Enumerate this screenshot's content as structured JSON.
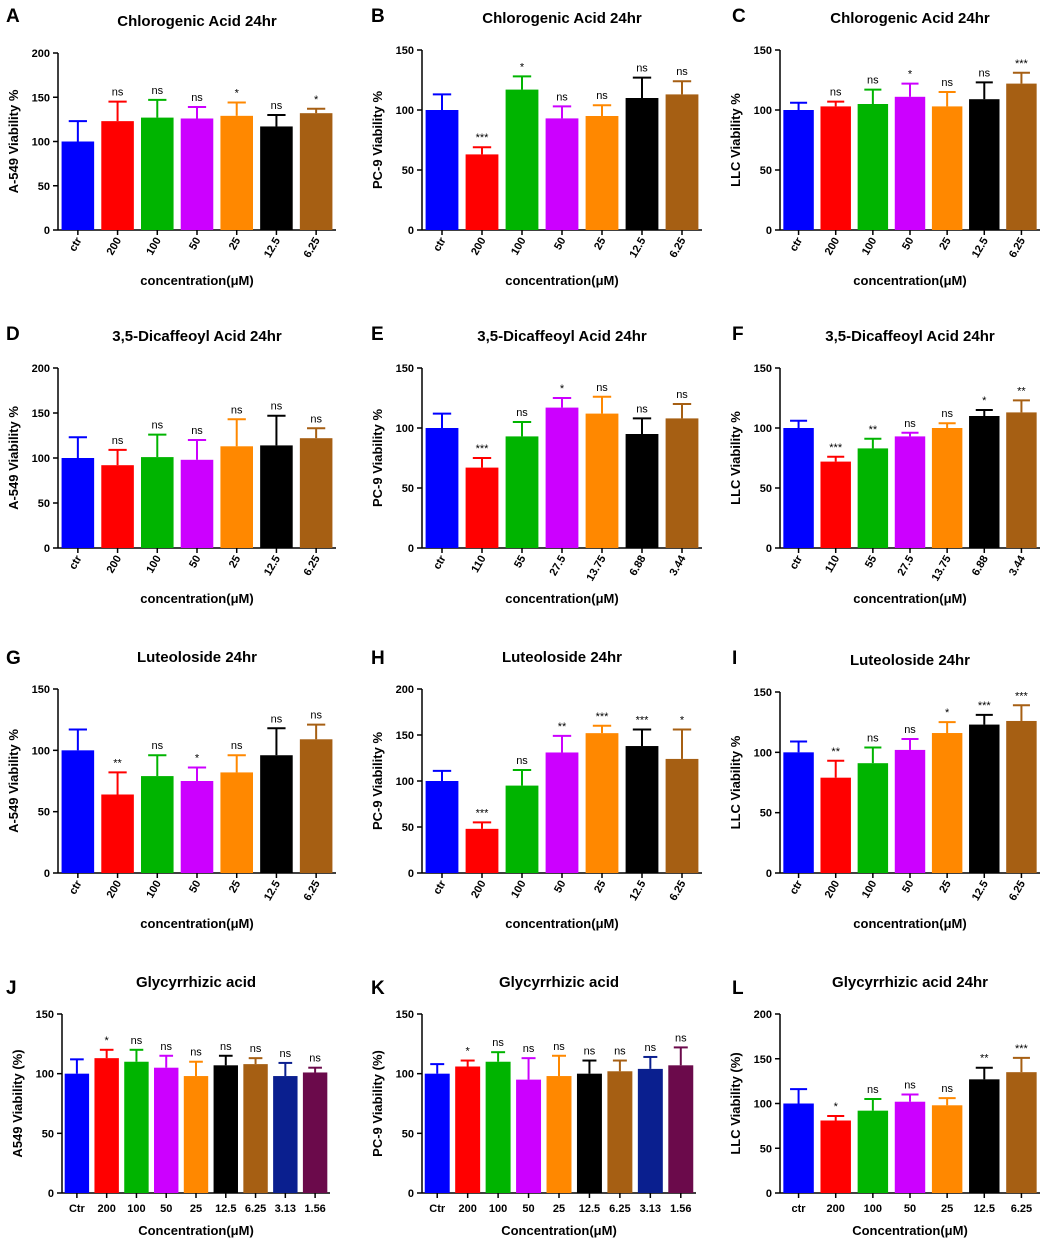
{
  "colors": {
    "blue": "#0000ff",
    "red": "#ff0000",
    "green": "#00b400",
    "purple": "#cc00ff",
    "orange": "#ff8800",
    "black": "#000000",
    "brown": "#a65f13",
    "navy": "#0a1f8f",
    "maroon": "#6b0a4b"
  },
  "chart_data": [
    {
      "panel": "A",
      "type": "bar",
      "title": "Chlorogenic Acid 24hr",
      "xlabel": "concentration(μM)",
      "ylabel": "A-549 Viability %",
      "ylim": [
        0,
        200
      ],
      "yticks": [
        0,
        50,
        100,
        150,
        200
      ],
      "rotate_ticks": true,
      "categories": [
        "ctr",
        "200",
        "100",
        "50",
        "25",
        "12.5",
        "6.25"
      ],
      "values": [
        100,
        123,
        127,
        126,
        129,
        117,
        132
      ],
      "errors": [
        23,
        22,
        20,
        13,
        15,
        13,
        5
      ],
      "significance": [
        "",
        "ns",
        "ns",
        "ns",
        "*",
        "ns",
        "*"
      ],
      "colors": [
        "blue",
        "red",
        "green",
        "purple",
        "orange",
        "black",
        "brown"
      ]
    },
    {
      "panel": "B",
      "type": "bar",
      "title": "Chlorogenic Acid 24hr",
      "xlabel": "concentration(μM)",
      "ylabel": "PC-9 Viability %",
      "ylim": [
        0,
        150
      ],
      "yticks": [
        0,
        50,
        100,
        150
      ],
      "rotate_ticks": true,
      "categories": [
        "ctr",
        "200",
        "100",
        "50",
        "25",
        "12.5",
        "6.25"
      ],
      "values": [
        100,
        63,
        117,
        93,
        95,
        110,
        113
      ],
      "errors": [
        13,
        6,
        11,
        10,
        9,
        17,
        11
      ],
      "significance": [
        "",
        "***",
        "*",
        "ns",
        "ns",
        "ns",
        "ns"
      ],
      "colors": [
        "blue",
        "red",
        "green",
        "purple",
        "orange",
        "black",
        "brown"
      ]
    },
    {
      "panel": "C",
      "type": "bar",
      "title": "Chlorogenic Acid 24hr",
      "xlabel": "concentration(μM)",
      "ylabel": "LLC Viability %",
      "ylim": [
        0,
        150
      ],
      "yticks": [
        0,
        50,
        100,
        150
      ],
      "rotate_ticks": true,
      "categories": [
        "ctr",
        "200",
        "100",
        "50",
        "25",
        "12.5",
        "6.25"
      ],
      "values": [
        100,
        103,
        105,
        111,
        103,
        109,
        122
      ],
      "errors": [
        6,
        4,
        12,
        11,
        12,
        14,
        9
      ],
      "significance": [
        "",
        "ns",
        "ns",
        "*",
        "ns",
        "ns",
        "***"
      ],
      "colors": [
        "blue",
        "red",
        "green",
        "purple",
        "orange",
        "black",
        "brown"
      ]
    },
    {
      "panel": "D",
      "type": "bar",
      "title": "3,5-Dicaffeoyl Acid 24hr",
      "xlabel": "concentration(μM)",
      "ylabel": "A-549 Viability %",
      "ylim": [
        0,
        200
      ],
      "yticks": [
        0,
        50,
        100,
        150,
        200
      ],
      "rotate_ticks": true,
      "categories": [
        "ctr",
        "200",
        "100",
        "50",
        "25",
        "12.5",
        "6.25"
      ],
      "values": [
        100,
        92,
        101,
        98,
        113,
        114,
        122
      ],
      "errors": [
        23,
        17,
        25,
        22,
        30,
        33,
        11
      ],
      "significance": [
        "",
        "ns",
        "ns",
        "ns",
        "ns",
        "ns",
        "ns"
      ],
      "colors": [
        "blue",
        "red",
        "green",
        "purple",
        "orange",
        "black",
        "brown"
      ]
    },
    {
      "panel": "E",
      "type": "bar",
      "title": "3,5-Dicaffeoyl Acid 24hr",
      "xlabel": "concentration(μM)",
      "ylabel": "PC-9 Viability %",
      "ylim": [
        0,
        150
      ],
      "yticks": [
        0,
        50,
        100,
        150
      ],
      "rotate_ticks": true,
      "categories": [
        "ctr",
        "110",
        "55",
        "27.5",
        "13.75",
        "6.88",
        "3.44"
      ],
      "values": [
        100,
        67,
        93,
        117,
        112,
        95,
        108
      ],
      "errors": [
        12,
        8,
        12,
        8,
        14,
        13,
        12
      ],
      "significance": [
        "",
        "***",
        "ns",
        "*",
        "ns",
        "ns",
        "ns"
      ],
      "colors": [
        "blue",
        "red",
        "green",
        "purple",
        "orange",
        "black",
        "brown"
      ]
    },
    {
      "panel": "F",
      "type": "bar",
      "title": "3,5-Dicaffeoyl Acid 24hr",
      "xlabel": "concentration(μM)",
      "ylabel": "LLC Viability %",
      "ylim": [
        0,
        150
      ],
      "yticks": [
        0,
        50,
        100,
        150
      ],
      "rotate_ticks": true,
      "categories": [
        "ctr",
        "110",
        "55",
        "27.5",
        "13.75",
        "6.88",
        "3.44"
      ],
      "values": [
        100,
        72,
        83,
        93,
        100,
        110,
        113
      ],
      "errors": [
        6,
        4,
        8,
        3,
        4,
        5,
        10
      ],
      "significance": [
        "",
        "***",
        "**",
        "ns",
        "ns",
        "*",
        "**"
      ],
      "colors": [
        "blue",
        "red",
        "green",
        "purple",
        "orange",
        "black",
        "brown"
      ]
    },
    {
      "panel": "G",
      "type": "bar",
      "title": "Luteoloside 24hr",
      "xlabel": "concentration(μM)",
      "ylabel": "A-549 Viability %",
      "ylim": [
        0,
        150
      ],
      "yticks": [
        0,
        50,
        100,
        150
      ],
      "rotate_ticks": true,
      "categories": [
        "ctr",
        "200",
        "100",
        "50",
        "25",
        "12.5",
        "6.25"
      ],
      "values": [
        100,
        64,
        79,
        75,
        82,
        96,
        109
      ],
      "errors": [
        17,
        18,
        17,
        11,
        14,
        22,
        12
      ],
      "significance": [
        "",
        "**",
        "ns",
        "*",
        "ns",
        "ns",
        "ns"
      ],
      "colors": [
        "blue",
        "red",
        "green",
        "purple",
        "orange",
        "black",
        "brown"
      ]
    },
    {
      "panel": "H",
      "type": "bar",
      "title": "Luteoloside 24hr",
      "xlabel": "concentration(μM)",
      "ylabel": "PC-9 Viability %",
      "ylim": [
        0,
        200
      ],
      "yticks": [
        0,
        50,
        100,
        150,
        200
      ],
      "rotate_ticks": true,
      "categories": [
        "ctr",
        "200",
        "100",
        "50",
        "25",
        "12.5",
        "6.25"
      ],
      "values": [
        100,
        48,
        95,
        131,
        152,
        138,
        124
      ],
      "errors": [
        11,
        7,
        17,
        18,
        8,
        18,
        32
      ],
      "significance": [
        "",
        "***",
        "ns",
        "**",
        "***",
        "***",
        "*"
      ],
      "colors": [
        "blue",
        "red",
        "green",
        "purple",
        "orange",
        "black",
        "brown"
      ]
    },
    {
      "panel": "I",
      "type": "bar",
      "title": "Luteoloside 24hr",
      "xlabel": "concentration(μM)",
      "ylabel": "LLC Viability %",
      "ylim": [
        0,
        150
      ],
      "yticks": [
        0,
        50,
        100,
        150
      ],
      "rotate_ticks": true,
      "categories": [
        "ctr",
        "200",
        "100",
        "50",
        "25",
        "12.5",
        "6.25"
      ],
      "values": [
        100,
        79,
        91,
        102,
        116,
        123,
        126
      ],
      "errors": [
        9,
        14,
        13,
        9,
        9,
        8,
        13
      ],
      "significance": [
        "",
        "**",
        "ns",
        "ns",
        "*",
        "***",
        "***"
      ],
      "colors": [
        "blue",
        "red",
        "green",
        "purple",
        "orange",
        "black",
        "brown"
      ]
    },
    {
      "panel": "J",
      "type": "bar",
      "title": "Glycyrrhizic acid",
      "xlabel": "Concentration(μM)",
      "ylabel": "A549 Viability (%)",
      "ylim": [
        0,
        150
      ],
      "yticks": [
        0,
        50,
        100,
        150
      ],
      "rotate_ticks": false,
      "categories": [
        "Ctr",
        "200",
        "100",
        "50",
        "25",
        "12.5",
        "6.25",
        "3.13",
        "1.56"
      ],
      "values": [
        100,
        113,
        110,
        105,
        98,
        107,
        108,
        98,
        101
      ],
      "errors": [
        12,
        7,
        10,
        10,
        12,
        8,
        5,
        11,
        4
      ],
      "significance": [
        "",
        "*",
        "ns",
        "ns",
        "ns",
        "ns",
        "ns",
        "ns",
        "ns"
      ],
      "colors": [
        "blue",
        "red",
        "green",
        "purple",
        "orange",
        "black",
        "brown",
        "navy",
        "maroon"
      ]
    },
    {
      "panel": "K",
      "type": "bar",
      "title": "Glycyrrhizic acid",
      "xlabel": "Concentration(μM)",
      "ylabel": "PC-9 Viability (%)",
      "ylim": [
        0,
        150
      ],
      "yticks": [
        0,
        50,
        100,
        150
      ],
      "rotate_ticks": false,
      "categories": [
        "Ctr",
        "200",
        "100",
        "50",
        "25",
        "12.5",
        "6.25",
        "3.13",
        "1.56"
      ],
      "values": [
        100,
        106,
        110,
        95,
        98,
        100,
        102,
        104,
        107
      ],
      "errors": [
        8,
        5,
        8,
        18,
        17,
        11,
        9,
        10,
        15
      ],
      "significance": [
        "",
        "*",
        "ns",
        "ns",
        "ns",
        "ns",
        "ns",
        "ns",
        "ns"
      ],
      "colors": [
        "blue",
        "red",
        "green",
        "purple",
        "orange",
        "black",
        "brown",
        "navy",
        "maroon"
      ]
    },
    {
      "panel": "L",
      "type": "bar",
      "title": "Glycyrrhizic acid 24hr",
      "xlabel": "Concentration(μM)",
      "ylabel": "LLC Viability (%)",
      "ylim": [
        0,
        200
      ],
      "yticks": [
        0,
        50,
        100,
        150,
        200
      ],
      "rotate_ticks": false,
      "categories": [
        "ctr",
        "200",
        "100",
        "50",
        "25",
        "12.5",
        "6.25"
      ],
      "values": [
        100,
        81,
        92,
        102,
        98,
        127,
        135
      ],
      "errors": [
        16,
        5,
        13,
        8,
        8,
        13,
        16
      ],
      "significance": [
        "",
        "*",
        "ns",
        "ns",
        "ns",
        "**",
        "***"
      ],
      "colors": [
        "blue",
        "red",
        "green",
        "purple",
        "orange",
        "black",
        "brown"
      ]
    }
  ]
}
